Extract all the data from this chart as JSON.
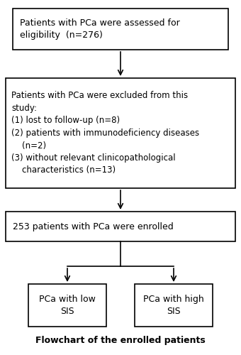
{
  "title": "Flowchart of the enrolled patients",
  "box1_text": "Patients with PCa were assessed for\neligibility  (n=276)",
  "box2_text": "Patients with PCa were excluded from this\nstudy:\n(1) lost to follow-up (n=8)\n(2) patients with immunodeficiency diseases\n    (n=2)\n(3) without relevant clinicopathological\n    characteristics (n=13)",
  "box3_text": "253 patients with PCa were enrolled",
  "box4_text": "PCa with low\nSIS",
  "box5_text": "PCa with high\nSIS",
  "bg_color": "#ffffff",
  "box_edge_color": "#000000",
  "text_color": "#000000",
  "arrow_color": "#000000"
}
